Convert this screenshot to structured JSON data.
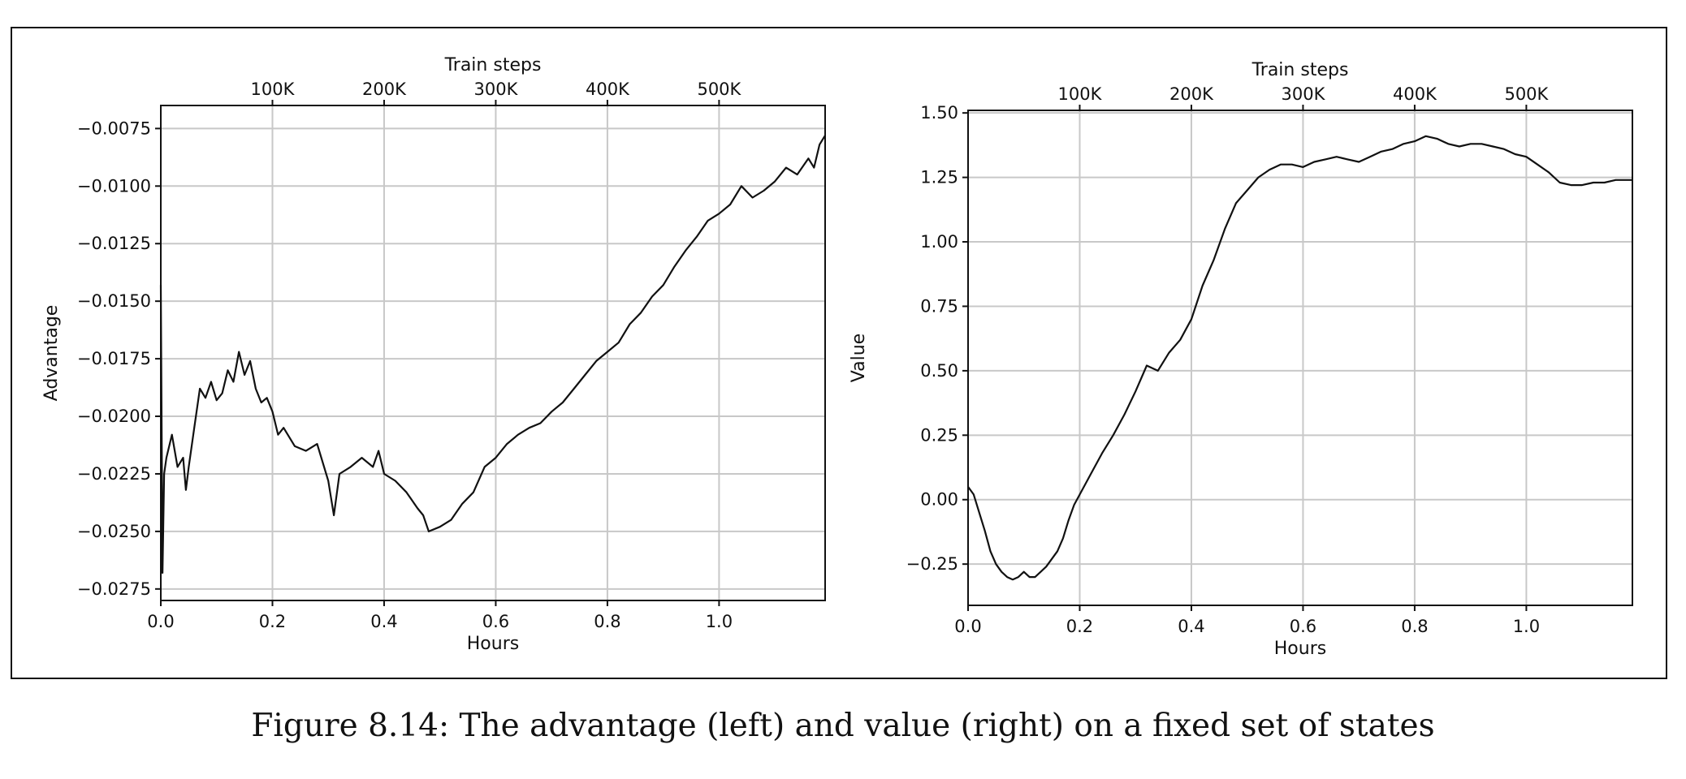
{
  "caption": "Figure 8.14: The advantage (left) and value (right) on a fixed set of states",
  "colors": {
    "line": "#111111",
    "grid": "#c8c8c8",
    "frame": "#111111"
  },
  "chart_data": [
    {
      "type": "line",
      "title": "",
      "xlabel": "Hours",
      "ylabel": "Advantage",
      "secondary_xlabel": "Train steps",
      "xlim": [
        0.0,
        1.19
      ],
      "ylim": [
        -0.028,
        -0.0065
      ],
      "x_ticks": [
        {
          "value": 0.0,
          "label": "0.0"
        },
        {
          "value": 0.2,
          "label": "0.2"
        },
        {
          "value": 0.4,
          "label": "0.4"
        },
        {
          "value": 0.6,
          "label": "0.6"
        },
        {
          "value": 0.8,
          "label": "0.8"
        },
        {
          "value": 1.0,
          "label": "1.0"
        }
      ],
      "y_ticks": [
        {
          "value": -0.0075,
          "label": "−0.0075"
        },
        {
          "value": -0.01,
          "label": "−0.0100"
        },
        {
          "value": -0.0125,
          "label": "−0.0125"
        },
        {
          "value": -0.015,
          "label": "−0.0150"
        },
        {
          "value": -0.0175,
          "label": "−0.0175"
        },
        {
          "value": -0.02,
          "label": "−0.0200"
        },
        {
          "value": -0.0225,
          "label": "−0.0225"
        },
        {
          "value": -0.025,
          "label": "−0.0250"
        },
        {
          "value": -0.0275,
          "label": "−0.0275"
        }
      ],
      "secondary_x_ticks": [
        {
          "hours": 0.2,
          "label": "100K"
        },
        {
          "hours": 0.4,
          "label": "200K"
        },
        {
          "hours": 0.6,
          "label": "300K"
        },
        {
          "hours": 0.8,
          "label": "400K"
        },
        {
          "hours": 1.0,
          "label": "500K"
        }
      ],
      "grid": true,
      "series": [
        {
          "x": [
            0.0,
            0.003,
            0.006,
            0.01,
            0.02,
            0.03,
            0.04,
            0.045,
            0.05,
            0.06,
            0.07,
            0.08,
            0.09,
            0.1,
            0.11,
            0.12,
            0.13,
            0.14,
            0.15,
            0.16,
            0.17,
            0.18,
            0.19,
            0.2,
            0.21,
            0.22,
            0.24,
            0.26,
            0.28,
            0.3,
            0.31,
            0.32,
            0.34,
            0.36,
            0.38,
            0.39,
            0.4,
            0.42,
            0.44,
            0.46,
            0.47,
            0.48,
            0.5,
            0.52,
            0.54,
            0.56,
            0.58,
            0.6,
            0.62,
            0.64,
            0.66,
            0.68,
            0.7,
            0.72,
            0.74,
            0.76,
            0.78,
            0.8,
            0.82,
            0.84,
            0.86,
            0.88,
            0.9,
            0.92,
            0.94,
            0.96,
            0.98,
            1.0,
            1.02,
            1.04,
            1.06,
            1.08,
            1.1,
            1.12,
            1.14,
            1.16,
            1.17,
            1.18,
            1.19
          ],
          "y": [
            -0.0143,
            -0.0268,
            -0.0225,
            -0.0218,
            -0.0208,
            -0.0222,
            -0.0218,
            -0.0232,
            -0.0222,
            -0.0205,
            -0.0188,
            -0.0192,
            -0.0185,
            -0.0193,
            -0.019,
            -0.018,
            -0.0185,
            -0.0172,
            -0.0182,
            -0.0176,
            -0.0188,
            -0.0194,
            -0.0192,
            -0.0198,
            -0.0208,
            -0.0205,
            -0.0213,
            -0.0215,
            -0.0212,
            -0.0228,
            -0.0243,
            -0.0225,
            -0.0222,
            -0.0218,
            -0.0222,
            -0.0215,
            -0.0225,
            -0.0228,
            -0.0233,
            -0.024,
            -0.0243,
            -0.025,
            -0.0248,
            -0.0245,
            -0.0238,
            -0.0233,
            -0.0222,
            -0.0218,
            -0.0212,
            -0.0208,
            -0.0205,
            -0.0203,
            -0.0198,
            -0.0194,
            -0.0188,
            -0.0182,
            -0.0176,
            -0.0172,
            -0.0168,
            -0.016,
            -0.0155,
            -0.0148,
            -0.0143,
            -0.0135,
            -0.0128,
            -0.0122,
            -0.0115,
            -0.0112,
            -0.0108,
            -0.01,
            -0.0105,
            -0.0102,
            -0.0098,
            -0.0092,
            -0.0095,
            -0.0088,
            -0.0092,
            -0.0082,
            -0.0078
          ]
        }
      ]
    },
    {
      "type": "line",
      "title": "",
      "xlabel": "Hours",
      "ylabel": "Value",
      "secondary_xlabel": "Train steps",
      "xlim": [
        0.0,
        1.19
      ],
      "ylim": [
        -0.41,
        1.51
      ],
      "x_ticks": [
        {
          "value": 0.0,
          "label": "0.0"
        },
        {
          "value": 0.2,
          "label": "0.2"
        },
        {
          "value": 0.4,
          "label": "0.4"
        },
        {
          "value": 0.6,
          "label": "0.6"
        },
        {
          "value": 0.8,
          "label": "0.8"
        },
        {
          "value": 1.0,
          "label": "1.0"
        }
      ],
      "y_ticks": [
        {
          "value": 1.5,
          "label": "1.50"
        },
        {
          "value": 1.25,
          "label": "1.25"
        },
        {
          "value": 1.0,
          "label": "1.00"
        },
        {
          "value": 0.75,
          "label": "0.75"
        },
        {
          "value": 0.5,
          "label": "0.50"
        },
        {
          "value": 0.25,
          "label": "0.25"
        },
        {
          "value": 0.0,
          "label": "0.00"
        },
        {
          "value": -0.25,
          "label": "−0.25"
        }
      ],
      "secondary_x_ticks": [
        {
          "hours": 0.2,
          "label": "100K"
        },
        {
          "hours": 0.4,
          "label": "200K"
        },
        {
          "hours": 0.6,
          "label": "300K"
        },
        {
          "hours": 0.8,
          "label": "400K"
        },
        {
          "hours": 1.0,
          "label": "500K"
        }
      ],
      "grid": true,
      "series": [
        {
          "x": [
            0.0,
            0.01,
            0.02,
            0.03,
            0.04,
            0.05,
            0.06,
            0.07,
            0.08,
            0.09,
            0.1,
            0.11,
            0.12,
            0.13,
            0.14,
            0.15,
            0.16,
            0.17,
            0.18,
            0.19,
            0.2,
            0.22,
            0.24,
            0.26,
            0.28,
            0.3,
            0.32,
            0.34,
            0.36,
            0.38,
            0.4,
            0.42,
            0.44,
            0.46,
            0.48,
            0.5,
            0.52,
            0.54,
            0.56,
            0.58,
            0.6,
            0.62,
            0.64,
            0.66,
            0.68,
            0.7,
            0.72,
            0.74,
            0.76,
            0.78,
            0.8,
            0.82,
            0.84,
            0.86,
            0.88,
            0.9,
            0.92,
            0.94,
            0.96,
            0.98,
            1.0,
            1.02,
            1.04,
            1.06,
            1.08,
            1.1,
            1.12,
            1.14,
            1.16,
            1.18,
            1.19
          ],
          "y": [
            0.05,
            0.02,
            -0.05,
            -0.12,
            -0.2,
            -0.25,
            -0.28,
            -0.3,
            -0.31,
            -0.3,
            -0.28,
            -0.3,
            -0.3,
            -0.28,
            -0.26,
            -0.23,
            -0.2,
            -0.15,
            -0.08,
            -0.02,
            0.02,
            0.1,
            0.18,
            0.25,
            0.33,
            0.42,
            0.52,
            0.5,
            0.57,
            0.62,
            0.7,
            0.83,
            0.93,
            1.05,
            1.15,
            1.2,
            1.25,
            1.28,
            1.3,
            1.3,
            1.29,
            1.31,
            1.32,
            1.33,
            1.32,
            1.31,
            1.33,
            1.35,
            1.36,
            1.38,
            1.39,
            1.41,
            1.4,
            1.38,
            1.37,
            1.38,
            1.38,
            1.37,
            1.36,
            1.34,
            1.33,
            1.3,
            1.27,
            1.23,
            1.22,
            1.22,
            1.23,
            1.23,
            1.24,
            1.24,
            1.24
          ]
        }
      ]
    }
  ]
}
